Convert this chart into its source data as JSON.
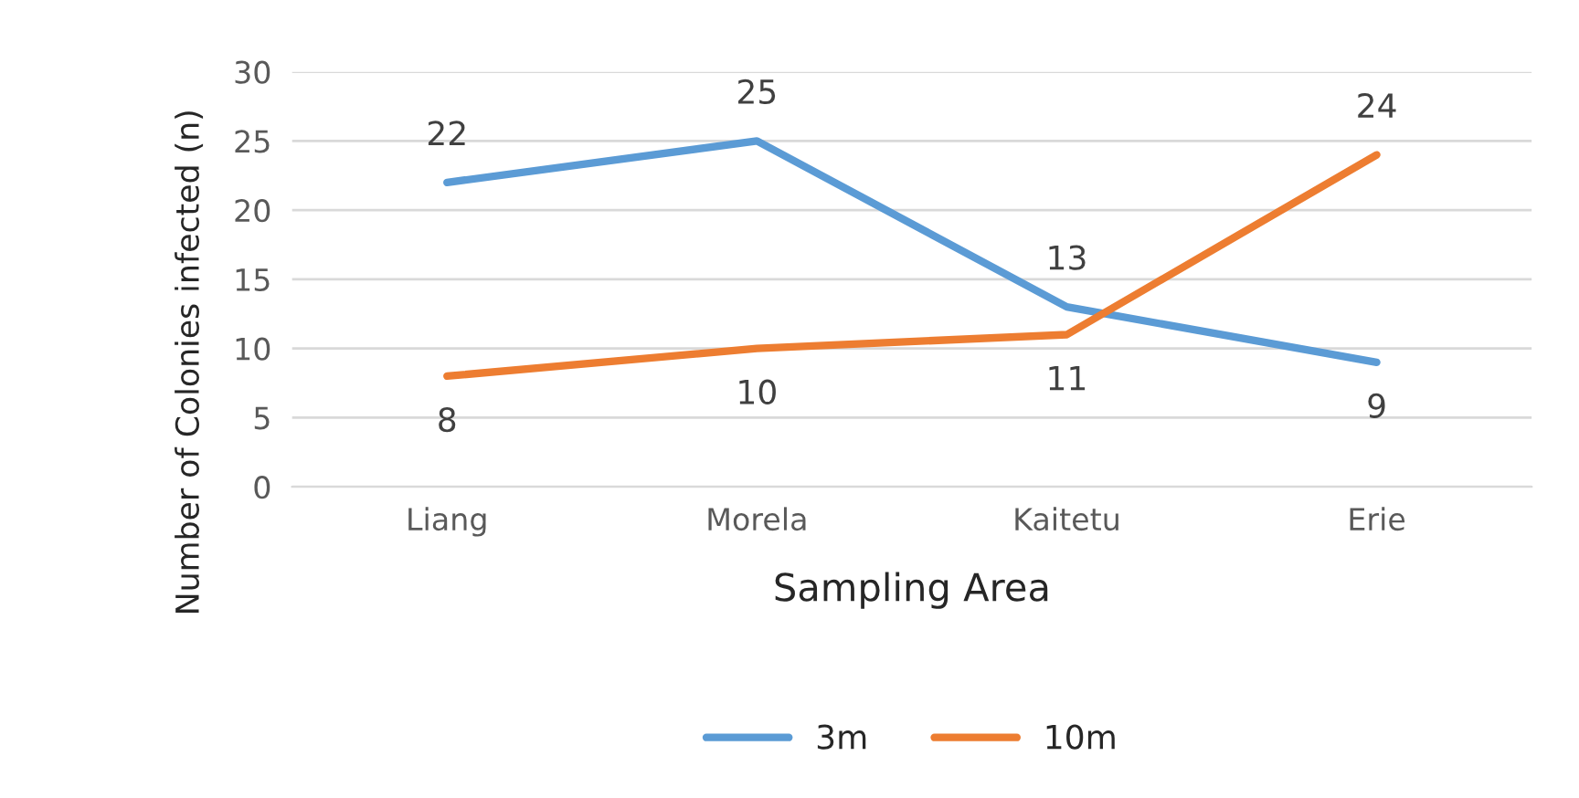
{
  "chart_data": {
    "type": "line",
    "xlabel": "Sampling Area",
    "ylabel": "Number of Colonies infected (n)",
    "categories": [
      "Liang",
      "Morela",
      "Kaitetu",
      "Erie"
    ],
    "series": [
      {
        "name": "3m",
        "color": "#5b9bd5",
        "values": [
          22,
          25,
          13,
          9
        ]
      },
      {
        "name": "10m",
        "color": "#ed7d31",
        "values": [
          8,
          10,
          11,
          24
        ]
      }
    ],
    "ylim": [
      0,
      30
    ],
    "yticks": [
      0,
      5,
      10,
      15,
      20,
      25,
      30
    ],
    "grid": "y",
    "legend": "bottom",
    "data_labels": true,
    "marker": "none",
    "line_style": "solid"
  }
}
